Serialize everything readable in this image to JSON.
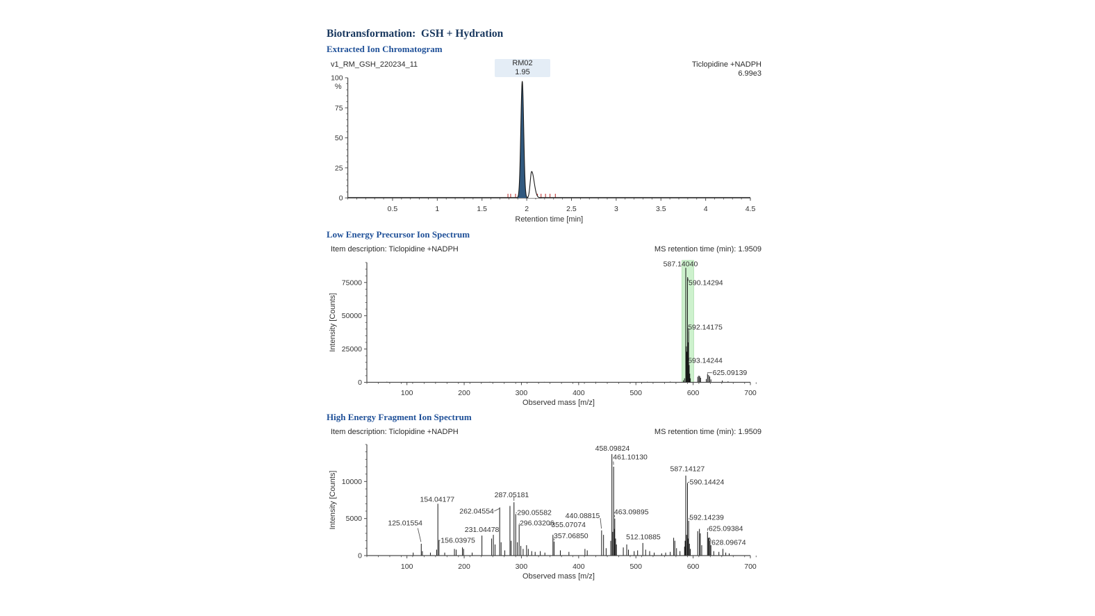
{
  "page": {
    "title": "Biotransformation:  GSH + Hydration"
  },
  "colors": {
    "heading_primary": "#17365d",
    "heading_secondary": "#1f5098",
    "xic_peak_fill": "#31597f",
    "xic_noise": "#c23b3b",
    "precursor_highlight": "#cdf1cd",
    "precursor_highlight_edge": "#aadfaa",
    "spectrum_line": "#141414"
  },
  "chart_data": [
    {
      "type": "line",
      "name": "Extracted Ion Chromatogram",
      "sample_id": "v1_RM_GSH_220234_11",
      "peak_label": "RM02",
      "peak_rt_label": "1.95",
      "trace_label": "Ticlopidine +NADPH",
      "trace_intensity": "6.99e3",
      "xlabel": "Retention time [min]",
      "ylabel": "%",
      "xlim": [
        0,
        4.5
      ],
      "ylim": [
        0,
        100
      ],
      "xticks": [
        0.5,
        1,
        1.5,
        2,
        2.5,
        3,
        3.5,
        4,
        4.5
      ],
      "yticks": [
        0,
        25,
        50,
        75,
        100
      ],
      "x_minor": 0.1,
      "y_minor": 5,
      "peaks": [
        {
          "rt": 1.95,
          "height": 97,
          "sigma": 0.016,
          "sigma_r": 0.016,
          "fill": "#31597f"
        },
        {
          "rt": 2.055,
          "height": 22,
          "sigma": 0.016,
          "sigma_r": 0.028,
          "fill": "#ffffff"
        }
      ],
      "noise_marks": {
        "color": "#c23b3b",
        "times": [
          1.79,
          1.82,
          1.875,
          1.93,
          1.99,
          2.12,
          2.16,
          2.21,
          2.26,
          2.32
        ]
      }
    },
    {
      "type": "bar",
      "name": "Low Energy Precursor Ion Spectrum",
      "item_description": "Item description: Ticlopidine +NADPH",
      "ms_retention_time": "MS retention time (min): 1.9509",
      "xlabel": "Observed mass [m/z]",
      "ylabel": "Intensity [Counts]",
      "xlim": [
        30,
        700
      ],
      "ylim": [
        0,
        90000
      ],
      "xticks": [
        100,
        200,
        300,
        400,
        500,
        600,
        700
      ],
      "yticks": [
        0,
        25000,
        50000,
        75000
      ],
      "x_minor": 20,
      "y_minor": 5000,
      "highlight": {
        "from": 580.5,
        "to": 601,
        "color": "#cdf1cd",
        "edge": "#aadfaa"
      },
      "peaks": [
        [
          65,
          400
        ],
        [
          150,
          300
        ],
        [
          245,
          350
        ],
        [
          340,
          300
        ],
        [
          430,
          350
        ],
        [
          520,
          400
        ],
        [
          560,
          500
        ],
        [
          583,
          1500
        ],
        [
          585,
          3000
        ],
        {
          "m": 587.1404,
          "i": 86000,
          "label": "587.14040",
          "lx": 578,
          "ly": 89000,
          "anchor": "middle"
        },
        [
          588.1,
          27000
        ],
        [
          589.1,
          23000
        ],
        {
          "m": 590.14294,
          "i": 79000,
          "label": "590.14294",
          "lx": 592,
          "ly": 75000,
          "anchor": "start",
          "leader": [
            [
              590.5,
              78800
            ],
            [
              591.6,
              76200
            ]
          ]
        },
        [
          591.1,
          30000
        ],
        {
          "m": 592.14175,
          "i": 40000,
          "label": "592.14175",
          "lx": 591,
          "ly": 41500,
          "anchor": "start",
          "leader": [
            [
              592.1,
              38200
            ],
            [
              591.5,
              40600
            ]
          ]
        },
        {
          "m": 593.14244,
          "i": 13000,
          "label": "593.14244",
          "lx": 591,
          "ly": 16500,
          "anchor": "start",
          "leader": [
            [
              592.9,
              13600
            ],
            [
              591.9,
              15800
            ]
          ]
        },
        [
          594.1,
          6500
        ],
        [
          595.1,
          3000
        ],
        [
          608,
          4200
        ],
        [
          610,
          5000
        ],
        [
          611.5,
          4600
        ],
        [
          613,
          3400
        ],
        [
          623,
          2500
        ],
        {
          "m": 625.09139,
          "i": 6300,
          "label": "625.09139",
          "lx": 634,
          "ly": 7200,
          "anchor": "start",
          "leader": [
            [
              625.4,
              6700
            ],
            [
              625.4,
              7200
            ],
            [
              633,
              7200
            ]
          ]
        },
        [
          627,
          5400
        ],
        [
          629,
          4400
        ],
        [
          631,
          2200
        ],
        [
          651,
          1300
        ],
        [
          661,
          700
        ]
      ]
    },
    {
      "type": "bar",
      "name": "High Energy Fragment Ion Spectrum",
      "item_description": "Item description: Ticlopidine +NADPH",
      "ms_retention_time": "MS retention time (min): 1.9509",
      "xlabel": "Observed mass [m/z]",
      "ylabel": "Intensity [Counts]",
      "xlim": [
        30,
        700
      ],
      "ylim": [
        0,
        15000
      ],
      "xticks": [
        100,
        200,
        300,
        400,
        500,
        600,
        700
      ],
      "yticks": [
        0,
        5000,
        10000
      ],
      "x_minor": 20,
      "y_minor": 1000,
      "peaks": [
        [
          111,
          400
        ],
        {
          "m": 125.01554,
          "i": 1600,
          "label": "125.01554",
          "lx": 97,
          "ly": 4400,
          "anchor": "middle",
          "leader": [
            [
              119,
              3700
            ],
            [
              124.5,
              1850
            ]
          ]
        },
        [
          127,
          600
        ],
        [
          141,
          400
        ],
        [
          152,
          800
        ],
        {
          "m": 154.04177,
          "i": 7000,
          "label": "154.04177",
          "lx": 153,
          "ly": 7600,
          "anchor": "middle"
        },
        {
          "m": 156.03975,
          "i": 2100,
          "label": "156.03975",
          "lx": 159,
          "ly": 2050,
          "anchor": "start",
          "leader": [
            [
              156.4,
              2050
            ],
            [
              158.2,
              2050
            ]
          ]
        },
        [
          166,
          400
        ],
        [
          183,
          900
        ],
        [
          186,
          800
        ],
        [
          197,
          1100
        ],
        [
          199,
          900
        ],
        [
          214,
          400
        ],
        {
          "m": 231.04478,
          "i": 2700,
          "label": "231.04478",
          "lx": 231,
          "ly": 3500,
          "anchor": "middle"
        },
        [
          248,
          2300
        ],
        [
          251,
          2800
        ],
        [
          254,
          1500
        ],
        {
          "m": 262.04554,
          "i": 6500,
          "label": "262.04554",
          "lx": 252,
          "ly": 6000,
          "anchor": "end",
          "leader": [
            [
              252.5,
              6000
            ],
            [
              261.5,
              6350
            ]
          ]
        },
        [
          264.5,
          1800
        ],
        [
          271,
          700
        ],
        [
          280,
          6700
        ],
        [
          282,
          2000
        ],
        {
          "m": 287.05181,
          "i": 7200,
          "label": "287.05181",
          "lx": 283,
          "ly": 8200,
          "anchor": "middle",
          "leader": [
            [
              287,
              7900
            ],
            [
              287,
              7400
            ]
          ]
        },
        {
          "m": 290.05582,
          "i": 5600,
          "label": "290.05582",
          "lx": 292.5,
          "ly": 5800,
          "anchor": "start",
          "leader": [
            [
              290.4,
              5750
            ],
            [
              292,
              5800
            ]
          ]
        },
        [
          293,
          1800
        ],
        {
          "m": 296.03206,
          "i": 4200,
          "label": "296.03206",
          "lx": 297,
          "ly": 4400,
          "anchor": "start",
          "leader": [
            [
              296.2,
              4280
            ],
            [
              296.8,
              4380
            ]
          ]
        },
        [
          299,
          1300
        ],
        [
          303,
          900
        ],
        [
          309,
          1400
        ],
        [
          312,
          900
        ],
        [
          318,
          600
        ],
        [
          324,
          500
        ],
        [
          333,
          600
        ],
        [
          341,
          400
        ],
        {
          "m": 355.07074,
          "i": 2800,
          "label": "355.07074",
          "lx": 352,
          "ly": 4150,
          "anchor": "start",
          "leader": [
            [
              347,
              4150
            ],
            [
              351.5,
              4150
            ]
          ]
        },
        {
          "m": 357.0685,
          "i": 1900,
          "label": "357.06850",
          "lx": 356.5,
          "ly": 2650,
          "anchor": "start",
          "leader": [
            [
              356.8,
              2300
            ],
            [
              357.1,
              2050
            ]
          ]
        },
        [
          368,
          700
        ],
        [
          383,
          500
        ],
        [
          411,
          900
        ],
        [
          415,
          700
        ],
        {
          "m": 440.08815,
          "i": 3400,
          "label": "440.08815",
          "lx": 437,
          "ly": 5400,
          "anchor": "end",
          "leader": [
            [
              437.8,
              5050
            ],
            [
              439.8,
              3650
            ]
          ]
        },
        [
          443.5,
          2800
        ],
        [
          448,
          1000
        ],
        [
          456,
          2000
        ],
        {
          "m": 458.09824,
          "i": 13700,
          "label": "458.09824",
          "lx": 459,
          "ly": 14500,
          "anchor": "middle"
        },
        [
          459.5,
          3200
        ],
        {
          "m": 461.1013,
          "i": 12000,
          "label": "461.10130",
          "lx": 460,
          "ly": 13300,
          "anchor": "start",
          "leader": [
            [
              460.6,
              12700
            ],
            [
              461,
              12250
            ]
          ]
        },
        [
          462.5,
          3600
        ],
        {
          "m": 463.09895,
          "i": 5000,
          "label": "463.09895",
          "lx": 462,
          "ly": 5900,
          "anchor": "start",
          "leader": [
            [
              462.6,
              5450
            ],
            [
              463,
              5200
            ]
          ]
        },
        [
          464.5,
          2300
        ],
        [
          466,
          1500
        ],
        [
          478,
          1100
        ],
        [
          484,
          1500
        ],
        [
          487,
          800
        ],
        [
          497,
          600
        ],
        [
          503,
          700
        ],
        {
          "m": 512.10885,
          "i": 1700,
          "label": "512.10885",
          "lx": 513,
          "ly": 2550,
          "anchor": "middle"
        },
        [
          517,
          800
        ],
        [
          524,
          600
        ],
        [
          532,
          400
        ],
        [
          545,
          300
        ],
        [
          552,
          400
        ],
        [
          560,
          500
        ],
        [
          566,
          2400
        ],
        [
          568,
          2000
        ],
        [
          571,
          1000
        ],
        [
          577,
          600
        ],
        [
          585,
          1200
        ],
        [
          586,
          2000
        ],
        {
          "m": 587.14127,
          "i": 10800,
          "label": "587.14127",
          "lx": 590,
          "ly": 11700,
          "anchor": "middle"
        },
        [
          588.5,
          2800
        ],
        {
          "m": 590.14424,
          "i": 9800,
          "label": "590.14424",
          "lx": 594,
          "ly": 9950,
          "anchor": "start",
          "leader": [
            [
              590.6,
              9850
            ],
            [
              593.5,
              9950
            ]
          ]
        },
        [
          591.5,
          2300
        ],
        {
          "m": 592.14239,
          "i": 4700,
          "label": "592.14239",
          "lx": 593.5,
          "ly": 5150,
          "anchor": "start",
          "leader": [
            [
              592.4,
              4880
            ],
            [
              593.2,
              5080
            ]
          ]
        },
        [
          593.5,
          1600
        ],
        [
          595,
          900
        ],
        [
          608,
          3300
        ],
        [
          611,
          3600
        ],
        [
          612.5,
          3000
        ],
        [
          615,
          1400
        ],
        {
          "m": 625.09384,
          "i": 3200,
          "label": "625.09384",
          "lx": 627,
          "ly": 3650,
          "anchor": "start",
          "leader": [
            [
              625.3,
              3350
            ],
            [
              625.3,
              3650
            ],
            [
              626.5,
              3650
            ]
          ]
        },
        [
          626.5,
          2400
        ],
        {
          "m": 628.09674,
          "i": 2400,
          "label": "628.09674",
          "lx": 632,
          "ly": 1800,
          "anchor": "start",
          "leader": [
            [
              628.5,
              2450
            ],
            [
              631.3,
              1950
            ]
          ]
        },
        [
          629.5,
          2000
        ],
        [
          631,
          1400
        ],
        [
          636,
          600
        ],
        [
          645,
          500
        ],
        [
          652,
          900
        ],
        [
          657,
          400
        ],
        [
          663,
          300
        ]
      ]
    }
  ]
}
